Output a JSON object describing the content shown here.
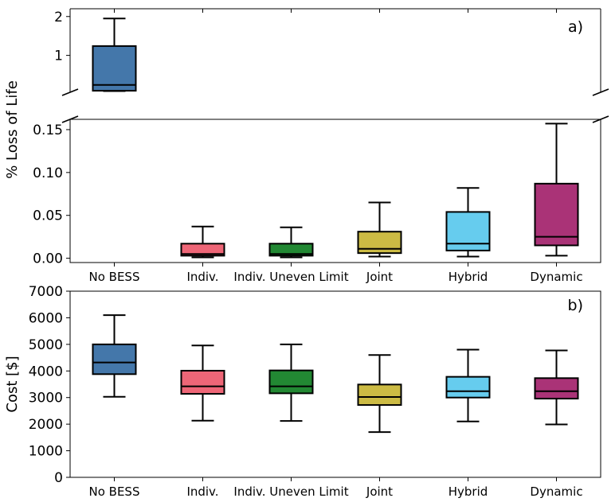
{
  "chart_data": [
    {
      "type": "box",
      "panel_label": "a)",
      "ylabel": "% Loss of Life",
      "broken_axis": true,
      "upper_segment": {
        "ylim": [
          0.05,
          2.2
        ],
        "yticks": [
          1,
          2
        ]
      },
      "lower_segment": {
        "ylim": [
          -0.005,
          0.162
        ],
        "yticks": [
          0.0,
          0.05,
          0.1,
          0.15
        ],
        "tick_labels": [
          "0.00",
          "0.05",
          "0.10",
          "0.15"
        ]
      },
      "categories": [
        "No BESS",
        "Indiv.",
        "Indiv. Uneven Limit",
        "Joint",
        "Hybrid",
        "Dynamic"
      ],
      "boxes": [
        {
          "name": "No BESS",
          "whislo": 0.08,
          "q1": 0.09,
          "med": 0.24,
          "q3": 1.24,
          "whishi": 1.95,
          "color": "#4477AA"
        },
        {
          "name": "Indiv.",
          "whislo": 0.001,
          "q1": 0.003,
          "med": 0.005,
          "q3": 0.017,
          "whishi": 0.037,
          "color": "#EE6677"
        },
        {
          "name": "Indiv. Uneven Limit",
          "whislo": 0.001,
          "q1": 0.003,
          "med": 0.005,
          "q3": 0.017,
          "whishi": 0.036,
          "color": "#228833"
        },
        {
          "name": "Joint",
          "whislo": 0.002,
          "q1": 0.006,
          "med": 0.011,
          "q3": 0.031,
          "whishi": 0.065,
          "color": "#CCBB44"
        },
        {
          "name": "Hybrid",
          "whislo": 0.002,
          "q1": 0.009,
          "med": 0.017,
          "q3": 0.054,
          "whishi": 0.082,
          "color": "#66CCEE"
        },
        {
          "name": "Dynamic",
          "whislo": 0.003,
          "q1": 0.015,
          "med": 0.025,
          "q3": 0.087,
          "whishi": 0.157,
          "color": "#AA3377"
        }
      ]
    },
    {
      "type": "box",
      "panel_label": "b)",
      "ylabel": "Cost [$]",
      "ylim": [
        0,
        7000
      ],
      "yticks": [
        0,
        1000,
        2000,
        3000,
        4000,
        5000,
        6000,
        7000
      ],
      "categories": [
        "No BESS",
        "Indiv.",
        "Indiv. Uneven Limit",
        "Joint",
        "Hybrid",
        "Dynamic"
      ],
      "boxes": [
        {
          "name": "No BESS",
          "whislo": 3030,
          "q1": 3880,
          "med": 4320,
          "q3": 5000,
          "whishi": 6100,
          "color": "#4477AA"
        },
        {
          "name": "Indiv.",
          "whislo": 2130,
          "q1": 3140,
          "med": 3420,
          "q3": 4010,
          "whishi": 4960,
          "color": "#EE6677"
        },
        {
          "name": "Indiv. Uneven Limit",
          "whislo": 2120,
          "q1": 3160,
          "med": 3420,
          "q3": 4020,
          "whishi": 5000,
          "color": "#228833"
        },
        {
          "name": "Joint",
          "whislo": 1700,
          "q1": 2720,
          "med": 3020,
          "q3": 3490,
          "whishi": 4600,
          "color": "#CCBB44"
        },
        {
          "name": "Hybrid",
          "whislo": 2100,
          "q1": 3000,
          "med": 3240,
          "q3": 3780,
          "whishi": 4800,
          "color": "#66CCEE"
        },
        {
          "name": "Dynamic",
          "whislo": 1990,
          "q1": 2960,
          "med": 3240,
          "q3": 3730,
          "whishi": 4770,
          "color": "#AA3377"
        }
      ]
    }
  ]
}
